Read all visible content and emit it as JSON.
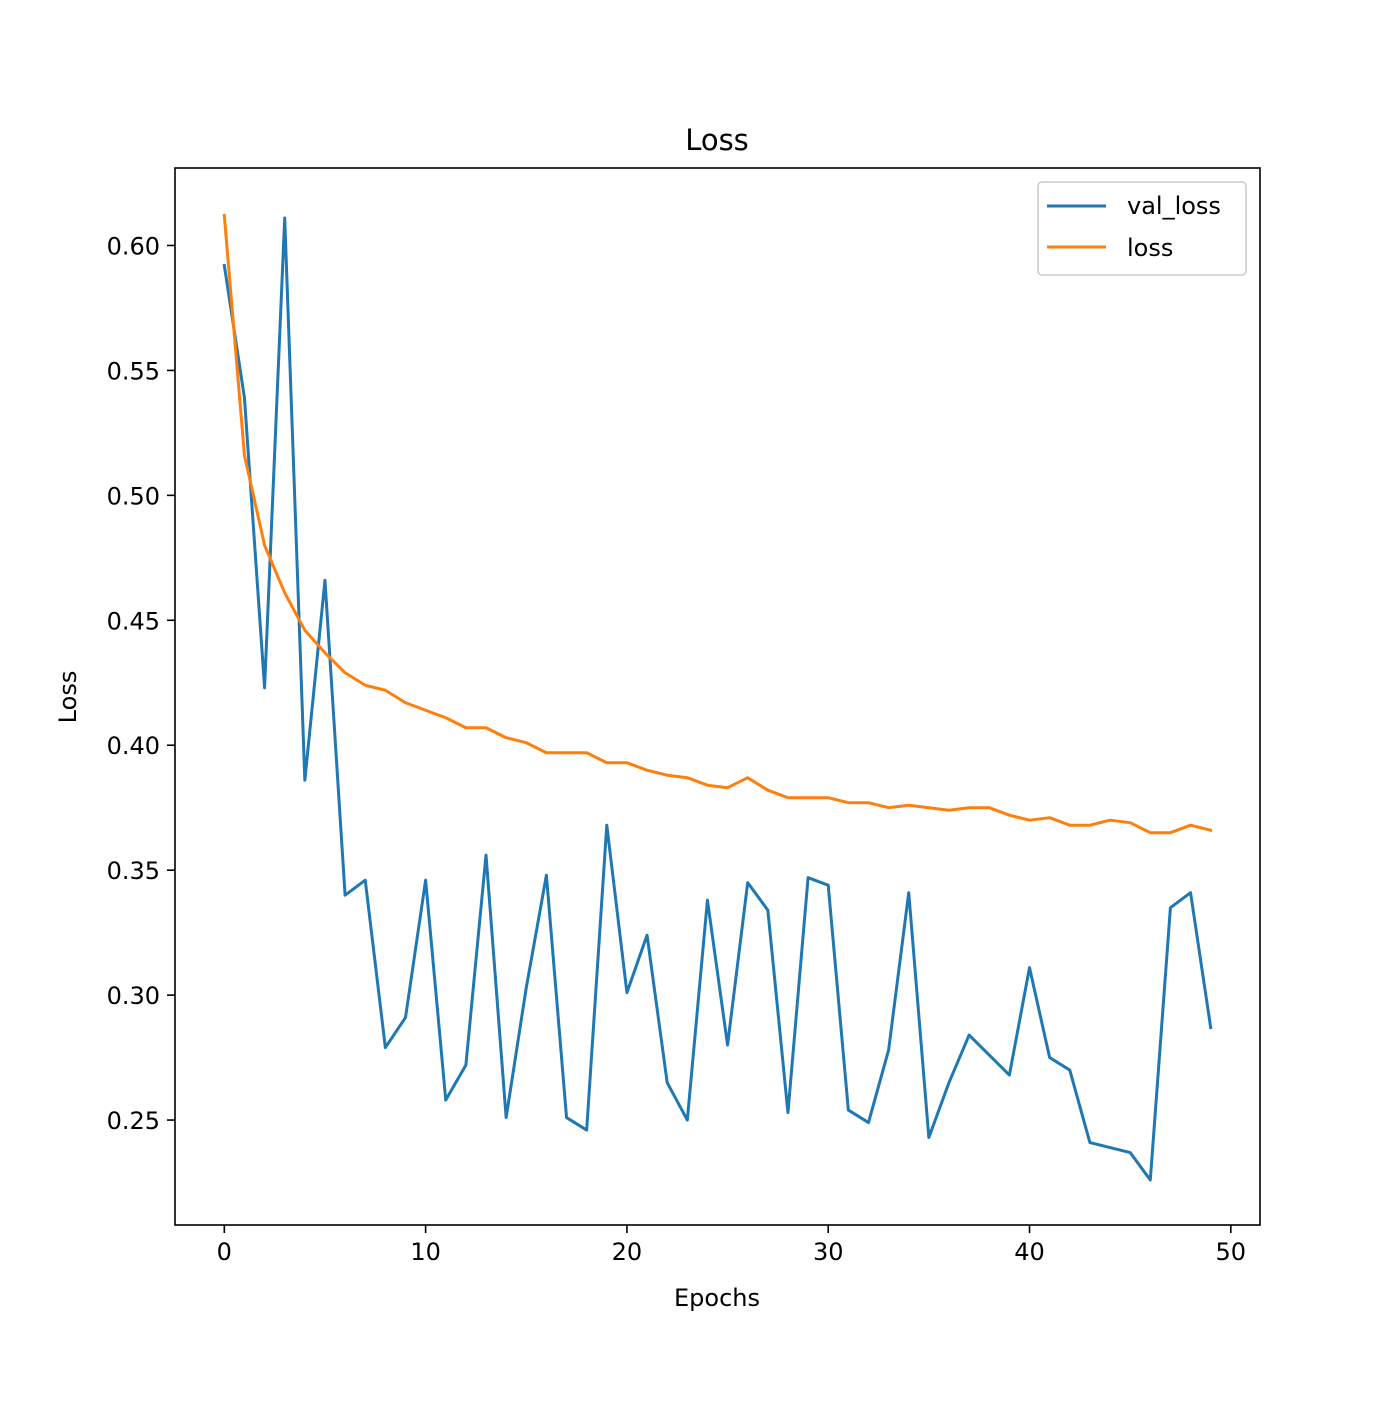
{
  "chart_data": {
    "type": "line",
    "title": "Loss",
    "xlabel": "Epochs",
    "ylabel": "Loss",
    "xlim": [
      -2.45,
      51.45
    ],
    "ylim": [
      0.208,
      0.631
    ],
    "xticks": [
      0,
      10,
      20,
      30,
      40,
      50
    ],
    "yticks": [
      0.25,
      0.3,
      0.35,
      0.4,
      0.45,
      0.5,
      0.55,
      0.6
    ],
    "xtick_labels": [
      "0",
      "10",
      "20",
      "30",
      "40",
      "50"
    ],
    "ytick_labels": [
      "0.25",
      "0.30",
      "0.35",
      "0.40",
      "0.45",
      "0.50",
      "0.55",
      "0.60"
    ],
    "grid": false,
    "legend_position": "upper right",
    "x": [
      0,
      1,
      2,
      3,
      4,
      5,
      6,
      7,
      8,
      9,
      10,
      11,
      12,
      13,
      14,
      15,
      16,
      17,
      18,
      19,
      20,
      21,
      22,
      23,
      24,
      25,
      26,
      27,
      28,
      29,
      30,
      31,
      32,
      33,
      34,
      35,
      36,
      37,
      38,
      39,
      40,
      41,
      42,
      43,
      44,
      45,
      46,
      47,
      48,
      49
    ],
    "series": [
      {
        "name": "val_loss",
        "color": "#1f77b4",
        "values": [
          0.592,
          0.539,
          0.423,
          0.611,
          0.386,
          0.466,
          0.34,
          0.346,
          0.279,
          0.291,
          0.346,
          0.258,
          0.272,
          0.356,
          0.251,
          0.303,
          0.348,
          0.251,
          0.246,
          0.368,
          0.301,
          0.324,
          0.265,
          0.25,
          0.338,
          0.28,
          0.345,
          0.334,
          0.253,
          0.347,
          0.344,
          0.254,
          0.249,
          0.278,
          0.341,
          0.243,
          0.265,
          0.284,
          0.276,
          0.268,
          0.311,
          0.275,
          0.27,
          0.241,
          0.239,
          0.237,
          0.226,
          0.335,
          0.341,
          0.287
        ]
      },
      {
        "name": "loss",
        "color": "#ff7f0e",
        "values": [
          0.612,
          0.516,
          0.48,
          0.461,
          0.446,
          0.437,
          0.429,
          0.424,
          0.422,
          0.417,
          0.414,
          0.411,
          0.407,
          0.407,
          0.403,
          0.401,
          0.397,
          0.397,
          0.397,
          0.393,
          0.393,
          0.39,
          0.388,
          0.387,
          0.384,
          0.383,
          0.387,
          0.382,
          0.379,
          0.379,
          0.379,
          0.377,
          0.377,
          0.375,
          0.376,
          0.375,
          0.374,
          0.375,
          0.375,
          0.372,
          0.37,
          0.371,
          0.368,
          0.368,
          0.37,
          0.369,
          0.365,
          0.365,
          0.368,
          0.366
        ]
      }
    ]
  }
}
